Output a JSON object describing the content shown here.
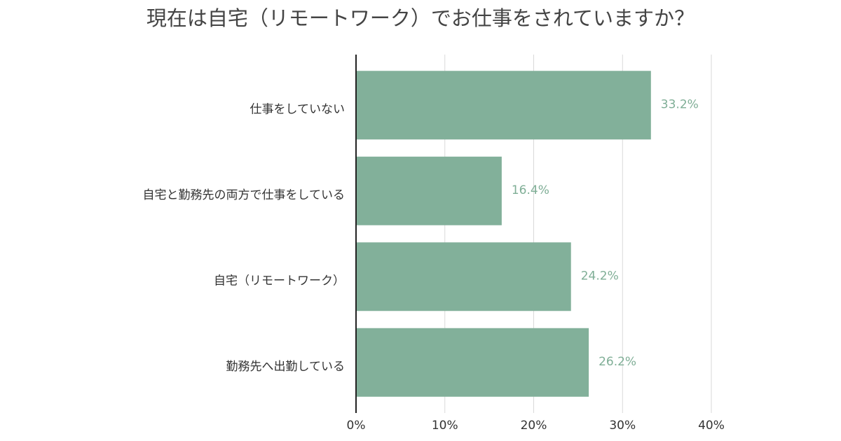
{
  "chart_data": {
    "type": "hbar",
    "title": "現在は自宅（リモートワーク）でお仕事をされていますか？",
    "categories": [
      "仕事をしていない",
      "自宅と勤務先の両方で仕事をしている",
      "自宅（リモートワーク）",
      "勤務先へ出勤している"
    ],
    "values": [
      33.2,
      16.4,
      24.2,
      26.2
    ],
    "value_labels": [
      "33.2%",
      "16.4%",
      "24.2%",
      "26.2%"
    ],
    "color": "#82b09a",
    "xlim": [
      0,
      40
    ],
    "xticks": [
      {
        "value": 0,
        "label": "0%"
      },
      {
        "value": 10,
        "label": "10%"
      },
      {
        "value": 20,
        "label": "20%"
      },
      {
        "value": 30,
        "label": "30%"
      },
      {
        "value": 40,
        "label": "40%"
      }
    ],
    "grid": true
  }
}
